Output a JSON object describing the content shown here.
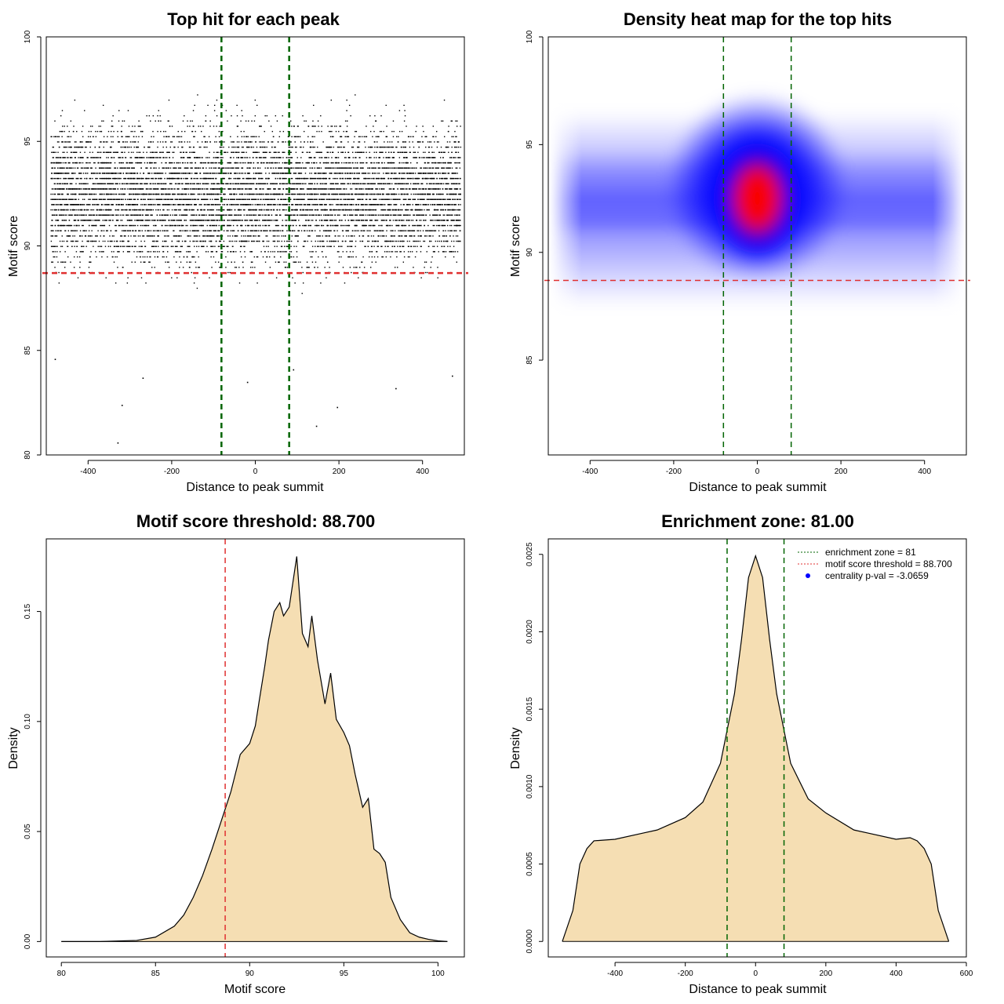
{
  "chart_data": [
    {
      "id": "scatter",
      "type": "scatter",
      "title": "Top hit for each peak",
      "xlabel": "Distance to peak summit",
      "ylabel": "Motif score",
      "xlim": [
        -500,
        500
      ],
      "ylim": [
        80,
        100
      ],
      "xticks": [
        -400,
        -200,
        0,
        200,
        400
      ],
      "yticks": [
        80,
        85,
        90,
        95,
        100
      ],
      "vlines": [
        {
          "x": -81,
          "color": "#006400",
          "style": "dashed"
        },
        {
          "x": 81,
          "color": "#006400",
          "style": "dashed"
        }
      ],
      "hlines": [
        {
          "y": 88.7,
          "color": "#e03030",
          "style": "dashed"
        }
      ],
      "points_note_values": {
        "x_range": [
          -490,
          490
        ],
        "score_range": [
          80.6,
          100
        ],
        "peak_score": 92.5
      },
      "outliers": [
        [
          -330,
          80.6
        ],
        [
          -320,
          82.4
        ],
        [
          195,
          82.3
        ],
        [
          335,
          83.2
        ],
        [
          145,
          81.4
        ],
        [
          -270,
          83.7
        ],
        [
          -20,
          83.5
        ],
        [
          90,
          84.1
        ],
        [
          470,
          83.8
        ],
        [
          -480,
          84.6
        ]
      ]
    },
    {
      "id": "heatmap",
      "type": "heatmap",
      "title": "Density heat map for the top hits",
      "xlabel": "Distance to peak summit",
      "ylabel": "Motif score",
      "xlim": [
        -500,
        500
      ],
      "ylim": [
        80.6,
        100
      ],
      "xticks": [
        -400,
        -200,
        0,
        200,
        400
      ],
      "yticks": [
        85,
        90,
        95,
        100
      ],
      "vlines": [
        {
          "x": -81,
          "color": "#006400",
          "style": "dashed"
        },
        {
          "x": 81,
          "color": "#006400",
          "style": "dashed"
        }
      ],
      "hlines": [
        {
          "y": 88.7,
          "color": "#e03030",
          "style": "dashed"
        }
      ],
      "colors": [
        "#ffffff",
        "#0000ff",
        "#ff0000"
      ],
      "density_peak": {
        "x": 0,
        "y": 92.5
      }
    },
    {
      "id": "score-density",
      "type": "area",
      "title": "Motif score threshold: 88.700",
      "xlabel": "Motif score",
      "ylabel": "Density",
      "xlim": [
        79.2,
        101.4
      ],
      "ylim": [
        -0.007,
        0.183
      ],
      "xticks": [
        80,
        85,
        90,
        95,
        100
      ],
      "yticks": [
        0.0,
        0.05,
        0.1,
        0.15
      ],
      "ytick_labels": [
        "0.00",
        "0.05",
        "0.10",
        "0.15"
      ],
      "fill": "#f5deb3",
      "vlines": [
        {
          "x": 88.7,
          "color": "#e03030",
          "style": "dashed"
        }
      ],
      "x": [
        80,
        82,
        84,
        85,
        86,
        86.5,
        87,
        87.5,
        88,
        88.5,
        89,
        89.5,
        90,
        90.3,
        90.5,
        90.8,
        91,
        91.3,
        91.6,
        91.8,
        92.1,
        92.5,
        92.8,
        93.1,
        93.3,
        93.6,
        94,
        94.3,
        94.6,
        95,
        95.3,
        95.6,
        96,
        96.3,
        96.6,
        96.9,
        97.2,
        97.5,
        98,
        98.5,
        99,
        99.5,
        100,
        100.5
      ],
      "y": [
        0.0,
        0.0,
        0.0005,
        0.002,
        0.007,
        0.012,
        0.02,
        0.03,
        0.042,
        0.055,
        0.068,
        0.085,
        0.09,
        0.098,
        0.109,
        0.125,
        0.137,
        0.15,
        0.154,
        0.148,
        0.152,
        0.175,
        0.14,
        0.134,
        0.148,
        0.128,
        0.108,
        0.122,
        0.101,
        0.095,
        0.089,
        0.076,
        0.061,
        0.065,
        0.042,
        0.04,
        0.036,
        0.02,
        0.01,
        0.004,
        0.002,
        0.001,
        0.0003,
        0.0
      ],
      "threshold_label": "88.700"
    },
    {
      "id": "distance-density",
      "type": "area",
      "title": "Enrichment zone: 81.00",
      "xlabel": "Distance to peak summit",
      "ylabel": "Density",
      "xlim": [
        -590,
        600
      ],
      "ylim": [
        -0.0001,
        0.0026
      ],
      "xticks": [
        -400,
        -200,
        0,
        200,
        400,
        600
      ],
      "yticks": [
        0.0,
        0.0005,
        0.001,
        0.0015,
        0.002,
        0.0025
      ],
      "ytick_labels": [
        "0.0000",
        "0.0005",
        "0.0010",
        "0.0015",
        "0.0020",
        "0.0025"
      ],
      "fill": "#f5deb3",
      "vlines": [
        {
          "x": -81,
          "color": "#006400",
          "style": "dashed"
        },
        {
          "x": 81,
          "color": "#006400",
          "style": "dashed"
        }
      ],
      "x": [
        -550,
        -520,
        -500,
        -480,
        -460,
        -400,
        -320,
        -280,
        -200,
        -150,
        -100,
        -60,
        -40,
        -20,
        0,
        20,
        40,
        60,
        100,
        150,
        200,
        280,
        320,
        400,
        440,
        460,
        480,
        500,
        520,
        550
      ],
      "y": [
        0.0,
        0.0002,
        0.0005,
        0.0006,
        0.00065,
        0.00066,
        0.0007,
        0.00072,
        0.0008,
        0.0009,
        0.00115,
        0.0016,
        0.00195,
        0.00235,
        0.00249,
        0.00235,
        0.00195,
        0.0016,
        0.00115,
        0.00092,
        0.00083,
        0.00072,
        0.0007,
        0.00066,
        0.00067,
        0.00065,
        0.0006,
        0.0005,
        0.0002,
        0.0
      ],
      "legend": {
        "position": "top-right",
        "entries": [
          {
            "label": "enrichment zone = 81",
            "color": "#006400",
            "kind": "dotted-line"
          },
          {
            "label": "motif score threshold = 88.700",
            "color": "#e03030",
            "kind": "dotted-line"
          },
          {
            "label": "centrality p-val = -3.0659",
            "color": "#0000ff",
            "kind": "point"
          }
        ]
      }
    }
  ]
}
